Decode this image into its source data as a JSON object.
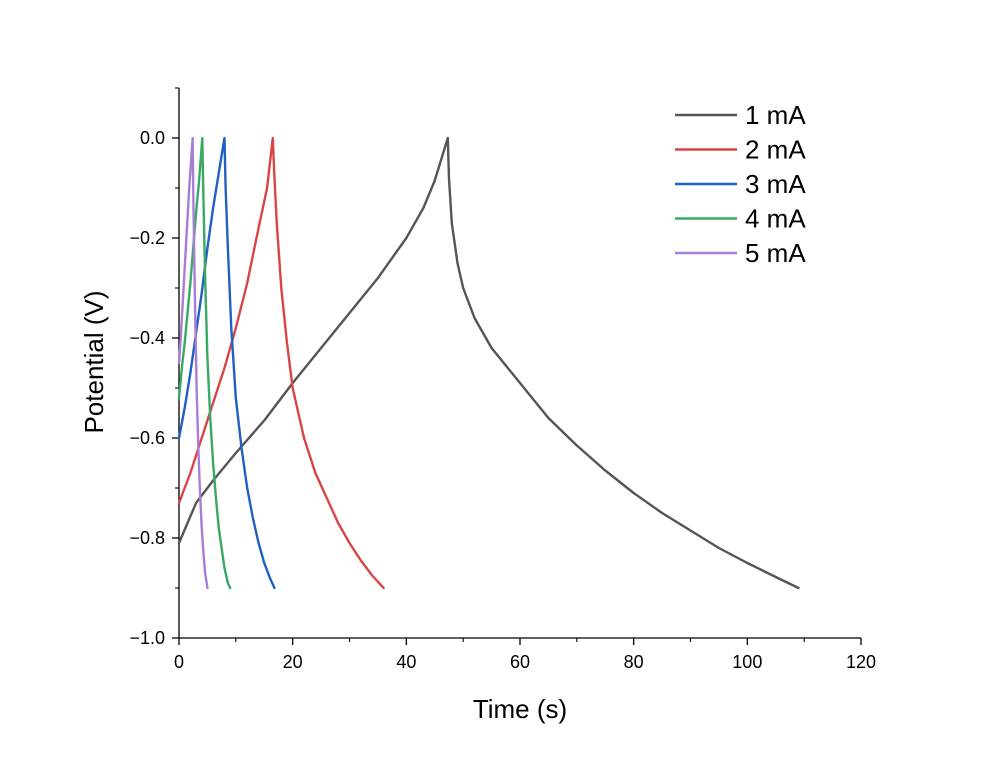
{
  "chart_data": {
    "type": "line",
    "xlabel": "Time (s)",
    "ylabel": "Potential (V)",
    "xlim": [
      0,
      120
    ],
    "ylim": [
      -1.0,
      0.1
    ],
    "xticks": [
      0,
      20,
      40,
      60,
      80,
      100,
      120
    ],
    "xtick_labels": [
      "0",
      "20",
      "40",
      "60",
      "80",
      "100",
      "120"
    ],
    "yticks": [
      -1.0,
      -0.8,
      -0.6,
      -0.4,
      -0.2,
      0.0
    ],
    "ytick_labels": [
      "−1.0",
      "−0.8",
      "−0.6",
      "−0.4",
      "−0.2",
      "0.0"
    ],
    "grid": false,
    "legend_position": "top-right",
    "series": [
      {
        "name": "1 mA",
        "color": "#555555",
        "points": [
          [
            0,
            -0.81
          ],
          [
            3,
            -0.73
          ],
          [
            6,
            -0.685
          ],
          [
            10,
            -0.63
          ],
          [
            15,
            -0.565
          ],
          [
            20,
            -0.49
          ],
          [
            25,
            -0.42
          ],
          [
            30,
            -0.35
          ],
          [
            35,
            -0.28
          ],
          [
            40,
            -0.2
          ],
          [
            43,
            -0.14
          ],
          [
            45,
            -0.085
          ],
          [
            47.3,
            0.0
          ],
          [
            47.5,
            -0.08
          ],
          [
            48,
            -0.17
          ],
          [
            49,
            -0.25
          ],
          [
            50,
            -0.3
          ],
          [
            52,
            -0.36
          ],
          [
            55,
            -0.42
          ],
          [
            60,
            -0.49
          ],
          [
            65,
            -0.56
          ],
          [
            70,
            -0.615
          ],
          [
            75,
            -0.665
          ],
          [
            80,
            -0.71
          ],
          [
            85,
            -0.75
          ],
          [
            90,
            -0.785
          ],
          [
            95,
            -0.82
          ],
          [
            100,
            -0.85
          ],
          [
            105,
            -0.878
          ],
          [
            109,
            -0.9
          ]
        ]
      },
      {
        "name": "2 mA",
        "color": "#d94545",
        "points": [
          [
            0,
            -0.73
          ],
          [
            2,
            -0.67
          ],
          [
            4,
            -0.6
          ],
          [
            6,
            -0.53
          ],
          [
            8,
            -0.46
          ],
          [
            10,
            -0.38
          ],
          [
            12,
            -0.29
          ],
          [
            14,
            -0.18
          ],
          [
            15.5,
            -0.1
          ],
          [
            16.5,
            0.0
          ],
          [
            16.8,
            -0.08
          ],
          [
            17.2,
            -0.17
          ],
          [
            18,
            -0.3
          ],
          [
            19,
            -0.41
          ],
          [
            20,
            -0.5
          ],
          [
            22,
            -0.6
          ],
          [
            24,
            -0.67
          ],
          [
            26,
            -0.72
          ],
          [
            28,
            -0.77
          ],
          [
            30,
            -0.81
          ],
          [
            32,
            -0.845
          ],
          [
            34,
            -0.875
          ],
          [
            36,
            -0.9
          ]
        ]
      },
      {
        "name": "3 mA",
        "color": "#2060c0",
        "points": [
          [
            0,
            -0.6
          ],
          [
            1,
            -0.54
          ],
          [
            2,
            -0.47
          ],
          [
            3,
            -0.39
          ],
          [
            4,
            -0.31
          ],
          [
            5,
            -0.22
          ],
          [
            6,
            -0.14
          ],
          [
            7,
            -0.07
          ],
          [
            8,
            0.0
          ],
          [
            8.2,
            -0.1
          ],
          [
            8.6,
            -0.22
          ],
          [
            9.2,
            -0.38
          ],
          [
            10,
            -0.52
          ],
          [
            11,
            -0.62
          ],
          [
            12,
            -0.7
          ],
          [
            13,
            -0.76
          ],
          [
            14,
            -0.81
          ],
          [
            15,
            -0.85
          ],
          [
            16,
            -0.88
          ],
          [
            16.8,
            -0.9
          ]
        ]
      },
      {
        "name": "4 mA",
        "color": "#3aa865",
        "points": [
          [
            0,
            -0.52
          ],
          [
            0.5,
            -0.46
          ],
          [
            1,
            -0.41
          ],
          [
            1.5,
            -0.35
          ],
          [
            2,
            -0.29
          ],
          [
            2.5,
            -0.22
          ],
          [
            3,
            -0.15
          ],
          [
            3.5,
            -0.09
          ],
          [
            4.1,
            0.0
          ],
          [
            4.3,
            -0.12
          ],
          [
            4.6,
            -0.28
          ],
          [
            5,
            -0.44
          ],
          [
            5.5,
            -0.56
          ],
          [
            6,
            -0.65
          ],
          [
            6.5,
            -0.72
          ],
          [
            7,
            -0.78
          ],
          [
            7.5,
            -0.82
          ],
          [
            8,
            -0.86
          ],
          [
            8.6,
            -0.89
          ],
          [
            9,
            -0.9
          ]
        ]
      },
      {
        "name": "5 mA",
        "color": "#a77dd6",
        "points": [
          [
            0,
            -0.45
          ],
          [
            0.3,
            -0.4
          ],
          [
            0.6,
            -0.34
          ],
          [
            0.9,
            -0.28
          ],
          [
            1.2,
            -0.22
          ],
          [
            1.5,
            -0.16
          ],
          [
            1.8,
            -0.1
          ],
          [
            2.1,
            -0.05
          ],
          [
            2.4,
            0.0
          ],
          [
            2.55,
            -0.14
          ],
          [
            2.8,
            -0.32
          ],
          [
            3.1,
            -0.5
          ],
          [
            3.4,
            -0.62
          ],
          [
            3.7,
            -0.71
          ],
          [
            4,
            -0.78
          ],
          [
            4.3,
            -0.83
          ],
          [
            4.6,
            -0.87
          ],
          [
            5,
            -0.9
          ]
        ]
      }
    ]
  }
}
